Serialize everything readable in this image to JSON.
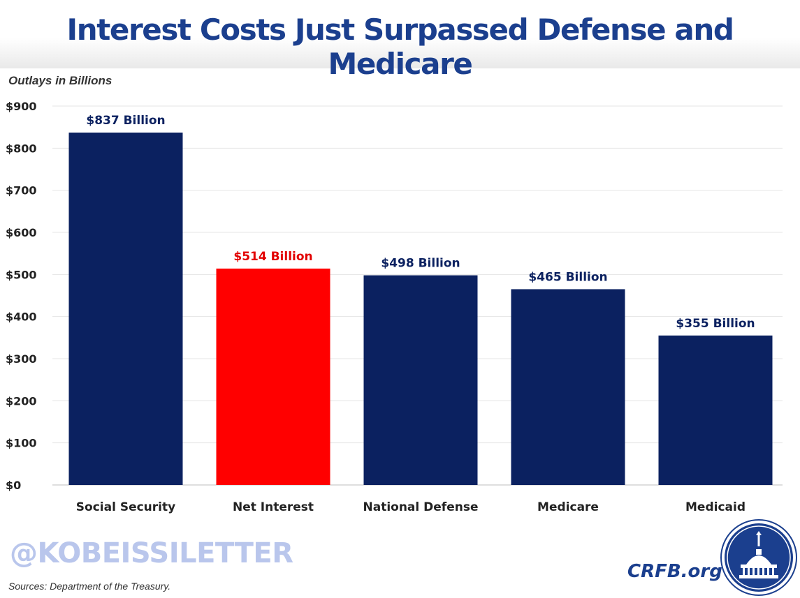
{
  "title": "Interest Costs Just Surpassed Defense and Medicare",
  "subtitle": "Outlays in Billions",
  "watermark": "@KOBEISSILETTER",
  "source": "Sources: Department of the Treasury.",
  "brand": "CRFB.org",
  "colors": {
    "primary": "#0b2160",
    "highlight": "#ff0000",
    "title": "#1b3f8e"
  },
  "chart_data": {
    "type": "bar",
    "title": "Interest Costs Just Surpassed Defense and Medicare",
    "ylabel": "Outlays in Billions",
    "xlabel": "",
    "ylim": [
      0,
      900
    ],
    "yticks": [
      0,
      100,
      200,
      300,
      400,
      500,
      600,
      700,
      800,
      900
    ],
    "ytick_labels": [
      "$0",
      "$100",
      "$200",
      "$300",
      "$400",
      "$500",
      "$600",
      "$700",
      "$800",
      "$900"
    ],
    "categories": [
      "Social Security",
      "Net Interest",
      "National Defense",
      "Medicare",
      "Medicaid"
    ],
    "values": [
      837,
      514,
      498,
      465,
      355
    ],
    "data_labels": [
      "$837 Billion",
      "$514 Billion",
      "$498 Billion",
      "$465 Billion",
      "$355 Billion"
    ],
    "highlight_index": 1,
    "grid": true,
    "legend": "none"
  }
}
